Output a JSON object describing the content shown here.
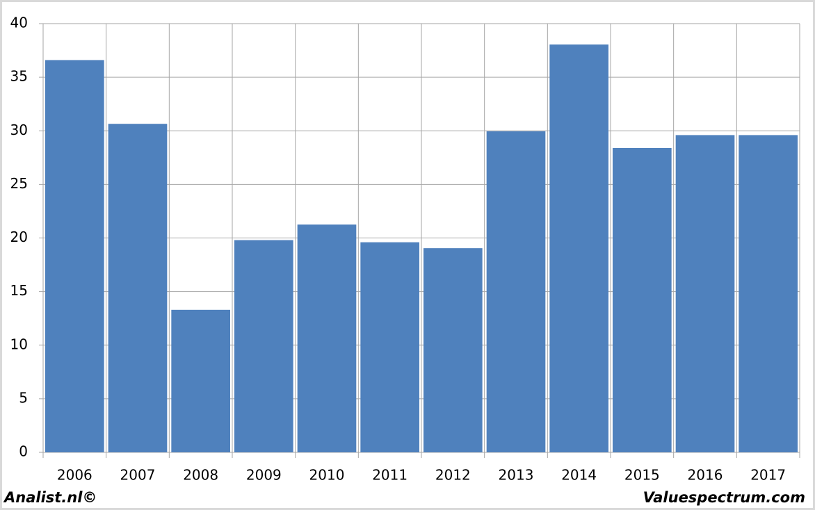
{
  "chart_data": {
    "type": "bar",
    "categories": [
      "2006",
      "2007",
      "2008",
      "2009",
      "2010",
      "2011",
      "2012",
      "2013",
      "2014",
      "2015",
      "2016",
      "2017"
    ],
    "values": [
      36.6,
      30.65,
      13.3,
      19.8,
      21.25,
      19.6,
      19.05,
      29.95,
      38.05,
      28.4,
      29.6,
      29.6
    ],
    "color": "#4f81bd",
    "ylim": [
      0,
      40
    ],
    "yticks": [
      0,
      5,
      10,
      15,
      20,
      25,
      30,
      35,
      40
    ],
    "grid": true
  },
  "footer": {
    "left": "Analist.nl©",
    "right": "Valuespectrum.com"
  }
}
